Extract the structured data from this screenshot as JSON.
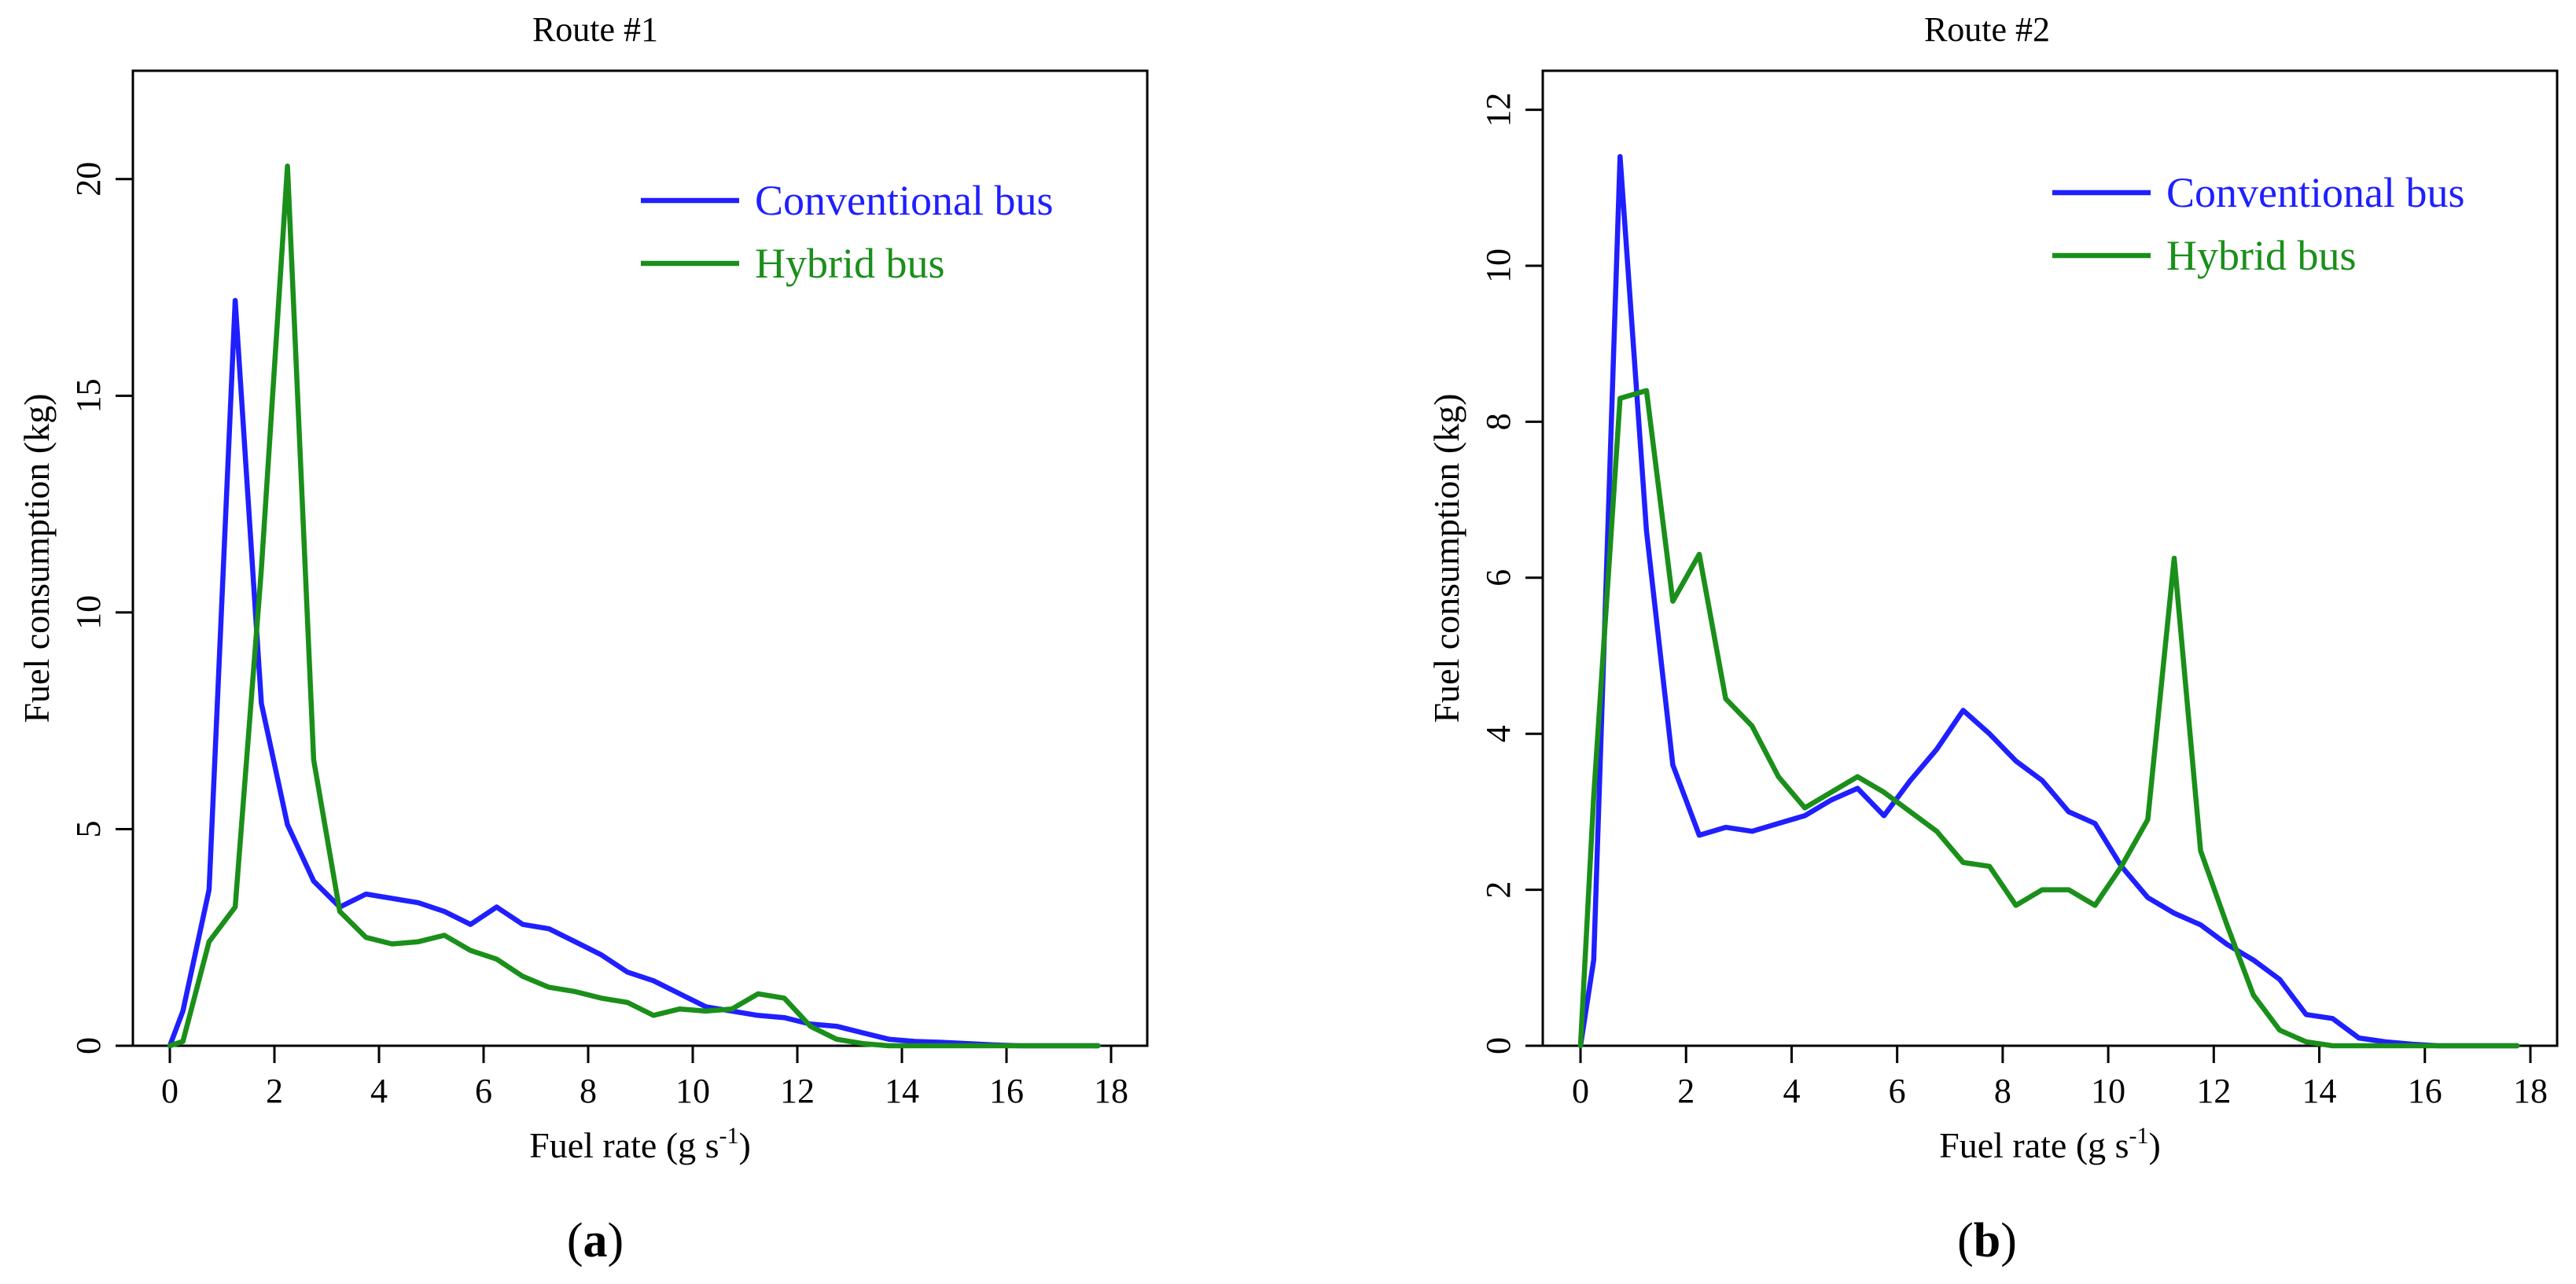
{
  "chart_data": [
    {
      "type": "line",
      "title": "Route #1",
      "panel_label": "a",
      "xlabel": "Fuel rate (g s",
      "xlabel_sup": "-1",
      "ylabel": "Fuel consumption (kg)",
      "xlim": [
        0,
        18
      ],
      "ylim": [
        0,
        22.5
      ],
      "xticks": [
        0,
        2,
        4,
        6,
        8,
        10,
        12,
        14,
        16,
        18
      ],
      "yticks": [
        0,
        5,
        10,
        15,
        20
      ],
      "legend_position": "top-right",
      "series": [
        {
          "name": "Conventional bus",
          "color": "#1f1fff",
          "x": [
            0,
            0.25,
            0.75,
            1.25,
            1.75,
            2.25,
            2.75,
            3.25,
            3.75,
            4.25,
            4.75,
            5.25,
            5.75,
            6.25,
            6.75,
            7.25,
            7.75,
            8.25,
            8.75,
            9.25,
            9.75,
            10.25,
            10.75,
            11.25,
            11.75,
            12.25,
            12.75,
            13.25,
            13.75,
            14.25,
            14.75,
            15.25,
            15.75,
            16.25,
            16.75,
            17.25,
            17.75
          ],
          "values": [
            0,
            0.8,
            3.6,
            17.2,
            7.9,
            5.1,
            3.8,
            3.2,
            3.5,
            3.4,
            3.3,
            3.1,
            2.8,
            3.2,
            2.8,
            2.7,
            2.4,
            2.1,
            1.7,
            1.5,
            1.2,
            0.9,
            0.8,
            0.7,
            0.65,
            0.5,
            0.45,
            0.3,
            0.15,
            0.1,
            0.08,
            0.05,
            0.02,
            0,
            0,
            0,
            0
          ]
        },
        {
          "name": "Hybrid bus",
          "color": "#1a8f1a",
          "x": [
            0,
            0.25,
            0.75,
            1.25,
            1.75,
            2.25,
            2.75,
            3.25,
            3.75,
            4.25,
            4.75,
            5.25,
            5.75,
            6.25,
            6.75,
            7.25,
            7.75,
            8.25,
            8.75,
            9.25,
            9.75,
            10.25,
            10.75,
            11.25,
            11.75,
            12.25,
            12.75,
            13.25,
            13.75,
            14.25,
            14.75,
            15.25,
            15.75,
            16.25,
            16.75,
            17.25,
            17.75
          ],
          "values": [
            0,
            0.1,
            2.4,
            3.2,
            11.0,
            20.3,
            6.6,
            3.1,
            2.5,
            2.35,
            2.4,
            2.55,
            2.2,
            2.0,
            1.6,
            1.35,
            1.25,
            1.1,
            1.0,
            0.7,
            0.85,
            0.8,
            0.85,
            1.2,
            1.1,
            0.45,
            0.15,
            0.05,
            0,
            0,
            0,
            0,
            0,
            0,
            0,
            0,
            0
          ]
        }
      ]
    },
    {
      "type": "line",
      "title": "Route #2",
      "panel_label": "b",
      "xlabel": "Fuel rate (g s",
      "xlabel_sup": "-1",
      "ylabel": "Fuel consumption (kg)",
      "xlim": [
        0,
        18
      ],
      "ylim": [
        0,
        12.5
      ],
      "xticks": [
        0,
        2,
        4,
        6,
        8,
        10,
        12,
        14,
        16,
        18
      ],
      "yticks": [
        0,
        2,
        4,
        6,
        8,
        10,
        12
      ],
      "legend_position": "top-right",
      "series": [
        {
          "name": "Conventional bus",
          "color": "#1f1fff",
          "x": [
            0,
            0.25,
            0.75,
            1.25,
            1.75,
            2.25,
            2.75,
            3.25,
            3.75,
            4.25,
            4.75,
            5.25,
            5.75,
            6.25,
            6.75,
            7.25,
            7.75,
            8.25,
            8.75,
            9.25,
            9.75,
            10.25,
            10.75,
            11.25,
            11.75,
            12.25,
            12.75,
            13.25,
            13.75,
            14.25,
            14.75,
            15.25,
            15.75,
            16.25,
            16.75,
            17.25,
            17.75
          ],
          "values": [
            0,
            1.1,
            11.4,
            6.6,
            3.6,
            2.7,
            2.8,
            2.75,
            2.85,
            2.95,
            3.15,
            3.3,
            2.95,
            3.4,
            3.8,
            4.3,
            4.0,
            3.65,
            3.4,
            3.0,
            2.85,
            2.3,
            1.9,
            1.7,
            1.55,
            1.3,
            1.1,
            0.85,
            0.4,
            0.35,
            0.1,
            0.05,
            0.02,
            0,
            0,
            0,
            0
          ]
        },
        {
          "name": "Hybrid bus",
          "color": "#1a8f1a",
          "x": [
            0,
            0.25,
            0.75,
            1.25,
            1.75,
            2.25,
            2.75,
            3.25,
            3.75,
            4.25,
            4.75,
            5.25,
            5.75,
            6.25,
            6.75,
            7.25,
            7.75,
            8.25,
            8.75,
            9.25,
            9.75,
            10.25,
            10.75,
            11.25,
            11.75,
            12.25,
            12.75,
            13.25,
            13.75,
            14.25,
            14.75,
            15.25,
            15.75,
            16.25,
            16.75,
            17.25,
            17.75
          ],
          "values": [
            0,
            3.2,
            8.3,
            8.4,
            5.7,
            6.3,
            4.45,
            4.1,
            3.45,
            3.05,
            3.25,
            3.45,
            3.25,
            3.0,
            2.75,
            2.35,
            2.3,
            1.8,
            2.0,
            2.0,
            1.8,
            2.3,
            2.9,
            6.25,
            2.5,
            1.55,
            0.65,
            0.2,
            0.05,
            0,
            0,
            0,
            0,
            0,
            0,
            0,
            0
          ]
        }
      ]
    }
  ]
}
